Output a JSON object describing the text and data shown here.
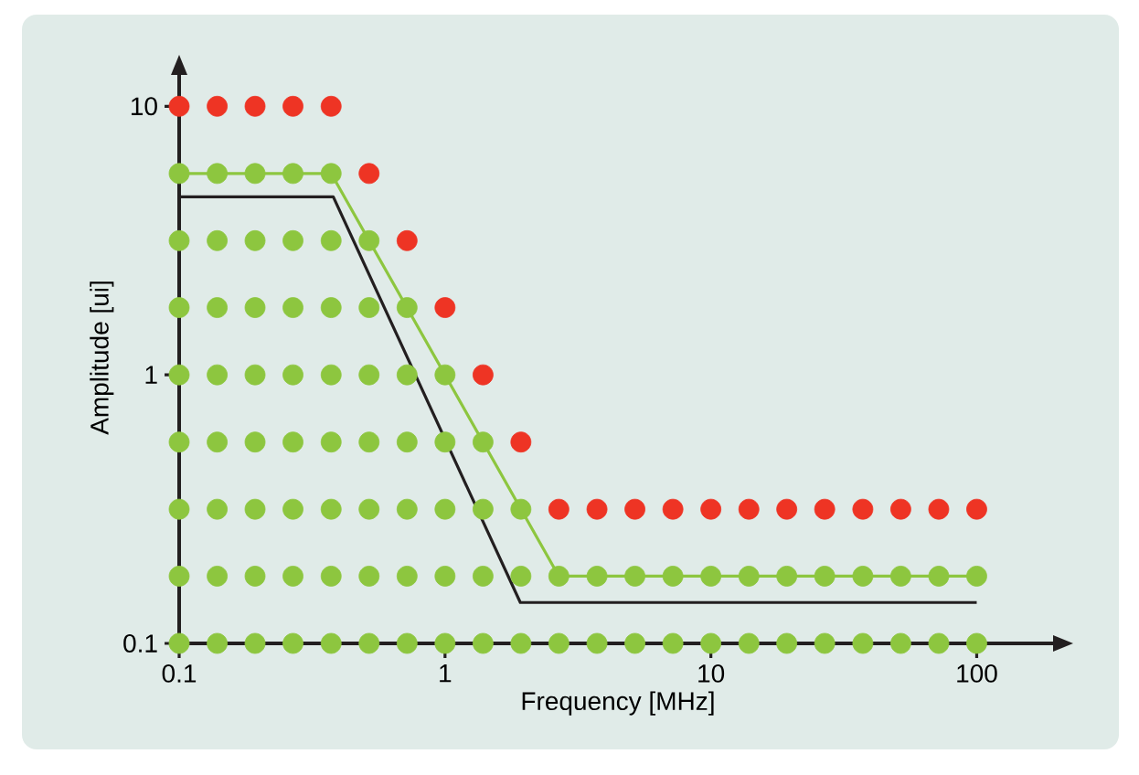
{
  "chart_data": {
    "type": "scatter",
    "xlabel": "Frequency [MHz]",
    "ylabel": "Amplitude [ui]",
    "log": "xy",
    "xlim": [
      0.1,
      200
    ],
    "ylim": [
      0.1,
      13.5
    ],
    "xticks": [
      0.1,
      1,
      10,
      100
    ],
    "yticks": [
      0.1,
      1,
      10
    ],
    "series": [
      {
        "type": "line",
        "color": "#231f20",
        "x": [
          0.1,
          0.38,
          1.92,
          100
        ],
        "values": [
          4.6,
          4.6,
          0.142,
          0.142
        ]
      },
      {
        "type": "line",
        "color": "#8dc63f",
        "x": [
          0.1,
          0.373,
          2.68,
          100
        ],
        "values": [
          5.62,
          5.62,
          0.178,
          0.178
        ]
      },
      {
        "type": "scatter",
        "color": "#8dc63f",
        "x": [
          0.1,
          0.139,
          0.193,
          0.268,
          0.373,
          0.1,
          0.139,
          0.193,
          0.268,
          0.373,
          0.518,
          0.1,
          0.139,
          0.193,
          0.268,
          0.373,
          0.518,
          0.72,
          0.1,
          0.139,
          0.193,
          0.268,
          0.373,
          0.518,
          0.72,
          1,
          0.1,
          0.139,
          0.193,
          0.268,
          0.373,
          0.518,
          0.72,
          1,
          1.39,
          0.1,
          0.139,
          0.193,
          0.268,
          0.373,
          0.518,
          0.72,
          1,
          1.39,
          1.93,
          0.1,
          0.139,
          0.193,
          0.268,
          0.373,
          0.518,
          0.72,
          1,
          1.39,
          1.93,
          2.68,
          3.73,
          5.18,
          7.2,
          10,
          13.9,
          19.3,
          26.8,
          37.3,
          51.8,
          72,
          100,
          0.1,
          0.139,
          0.193,
          0.268,
          0.373,
          0.518,
          0.72,
          1,
          1.39,
          1.93,
          2.68,
          3.73,
          5.18,
          7.2,
          10,
          13.9,
          19.3,
          26.8,
          37.3,
          51.8,
          72,
          100
        ],
        "values": [
          5.62,
          5.62,
          5.62,
          5.62,
          5.62,
          3.16,
          3.16,
          3.16,
          3.16,
          3.16,
          3.16,
          1.78,
          1.78,
          1.78,
          1.78,
          1.78,
          1.78,
          1.78,
          1,
          1,
          1,
          1,
          1,
          1,
          1,
          1,
          0.562,
          0.562,
          0.562,
          0.562,
          0.562,
          0.562,
          0.562,
          0.562,
          0.562,
          0.316,
          0.316,
          0.316,
          0.316,
          0.316,
          0.316,
          0.316,
          0.316,
          0.316,
          0.316,
          0.178,
          0.178,
          0.178,
          0.178,
          0.178,
          0.178,
          0.178,
          0.178,
          0.178,
          0.178,
          0.178,
          0.178,
          0.178,
          0.178,
          0.178,
          0.178,
          0.178,
          0.178,
          0.178,
          0.178,
          0.178,
          0.178,
          0.1,
          0.1,
          0.1,
          0.1,
          0.1,
          0.1,
          0.1,
          0.1,
          0.1,
          0.1,
          0.1,
          0.1,
          0.1,
          0.1,
          0.1,
          0.1,
          0.1,
          0.1,
          0.1,
          0.1,
          0.1,
          0.1
        ]
      },
      {
        "type": "scatter",
        "color": "#ee3424",
        "x": [
          0.1,
          0.139,
          0.193,
          0.268,
          0.373,
          0.518,
          0.72,
          1,
          1.39,
          1.93,
          2.68,
          3.73,
          5.18,
          7.2,
          10,
          13.9,
          19.3,
          26.8,
          37.3,
          51.8,
          72,
          100
        ],
        "values": [
          10,
          10,
          10,
          10,
          10,
          5.62,
          3.16,
          1.78,
          1,
          0.562,
          0.316,
          0.316,
          0.316,
          0.316,
          0.316,
          0.316,
          0.316,
          0.316,
          0.316,
          0.316,
          0.316,
          0.316
        ]
      }
    ]
  }
}
